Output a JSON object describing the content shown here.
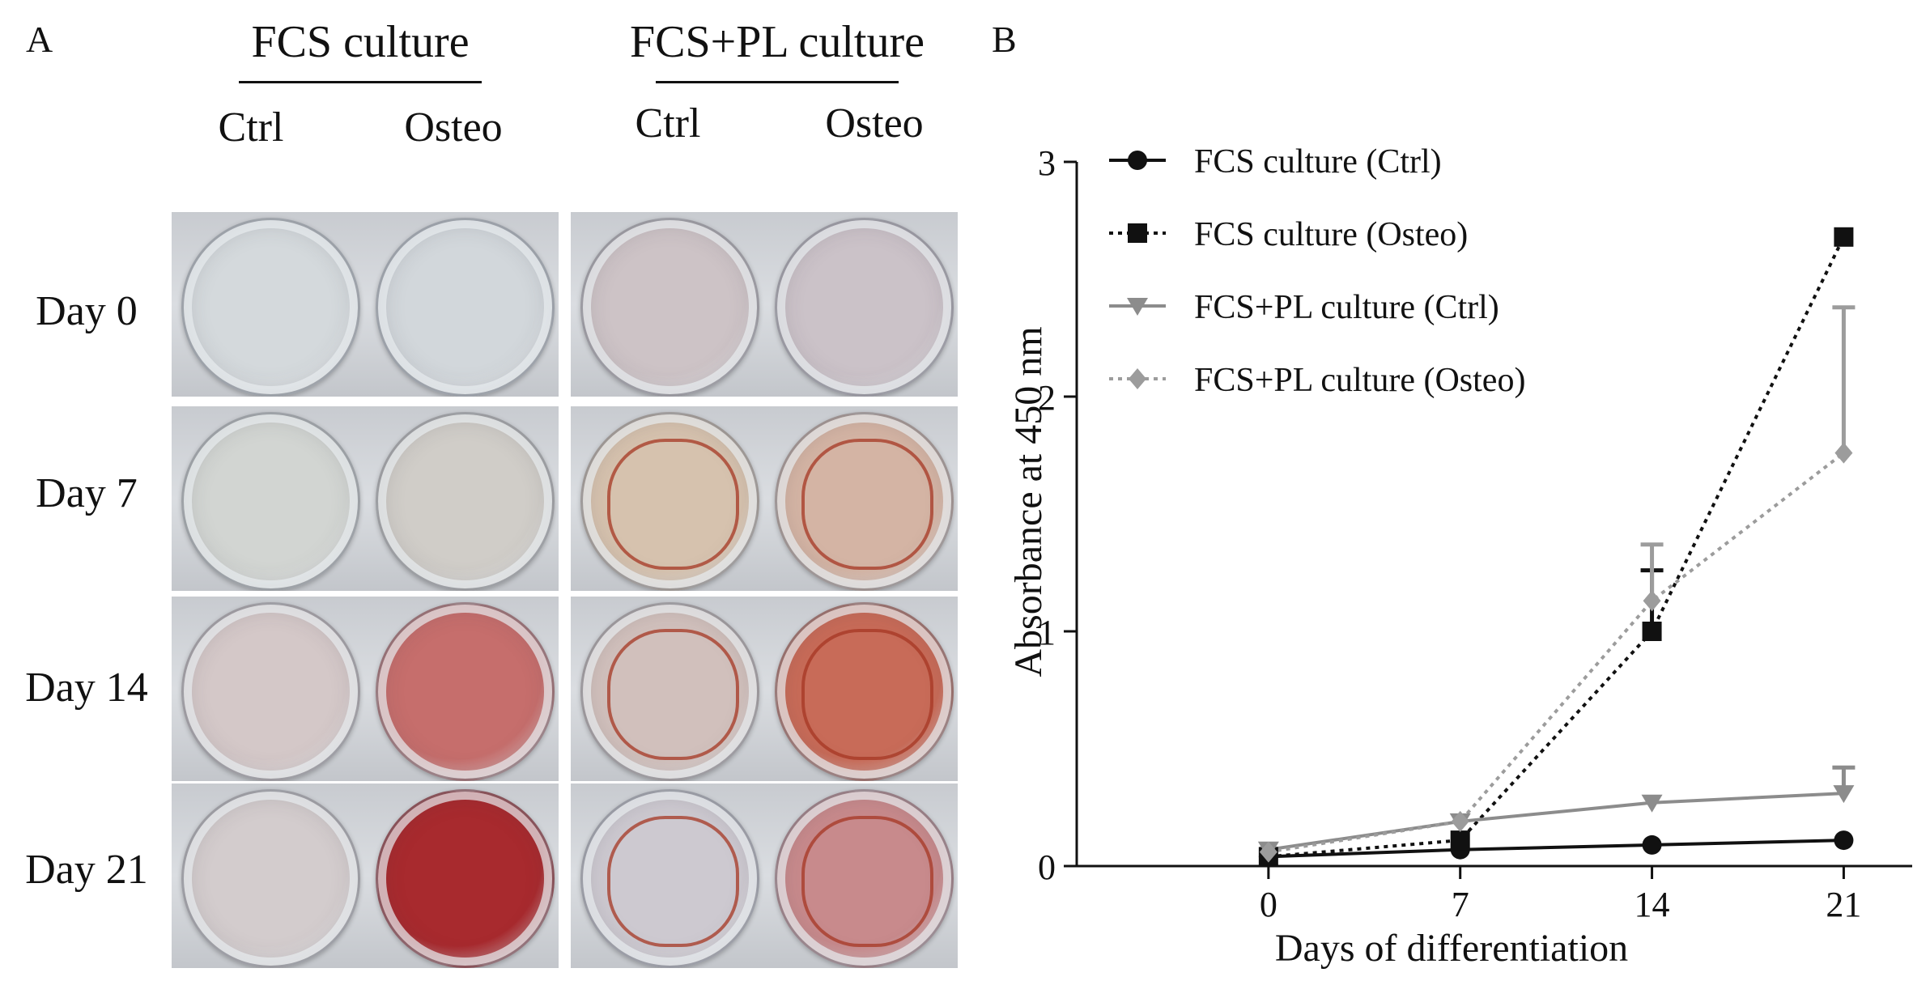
{
  "panel_a": {
    "letter": "A",
    "groups": [
      {
        "title": "FCS culture",
        "columns": [
          "Ctrl",
          "Osteo"
        ]
      },
      {
        "title": "FCS+PL culture",
        "columns": [
          "Ctrl",
          "Osteo"
        ]
      }
    ],
    "rows": [
      "Day 0",
      "Day 7",
      "Day 14",
      "Day 21"
    ],
    "well_colors": [
      [
        "#d4d9dc",
        "#d2d7db",
        "#cdc3c6",
        "#cbc2c8"
      ],
      [
        "#d2d5d2",
        "#d0cdc8",
        "#d6c2ae",
        "#d4b4a4"
      ],
      [
        "#d4c8c8",
        "#c66e6c",
        "#d1c0bc",
        "#c86b58"
      ],
      [
        "#d3cccd",
        "#a82a2e",
        "#cdc9d0",
        "#c88a8c"
      ]
    ],
    "inner_ring": [
      [
        false,
        false,
        false,
        false
      ],
      [
        false,
        false,
        true,
        true
      ],
      [
        false,
        false,
        true,
        true
      ],
      [
        false,
        false,
        true,
        true
      ]
    ]
  },
  "panel_b": {
    "letter": "B"
  },
  "chart_data": {
    "type": "line",
    "title": "",
    "xlabel": "Days of differentiation",
    "ylabel": "Absorbance at 450 nm",
    "x": [
      0,
      7,
      14,
      21
    ],
    "x_ticks": [
      "0",
      "7",
      "14",
      "21"
    ],
    "y_ticks": [
      "0",
      "1",
      "2",
      "3"
    ],
    "ylim": [
      0,
      3
    ],
    "legend_position": "top-left",
    "series": [
      {
        "name": "FCS culture (Ctrl)",
        "values": [
          0.04,
          0.07,
          0.09,
          0.11
        ],
        "errors": [
          0,
          0,
          0,
          0
        ],
        "color": "#111111",
        "line": "solid",
        "marker": "circle"
      },
      {
        "name": "FCS culture (Osteo)",
        "values": [
          0.04,
          0.11,
          1.0,
          2.68
        ],
        "errors": [
          0,
          0,
          0.26,
          0
        ],
        "color": "#111111",
        "line": "dotted",
        "marker": "square"
      },
      {
        "name": "FCS+PL culture (Ctrl)",
        "values": [
          0.07,
          0.19,
          0.27,
          0.31
        ],
        "errors": [
          0,
          0,
          0,
          0.11
        ],
        "color": "#8c8c8c",
        "line": "solid",
        "marker": "triangle-down"
      },
      {
        "name": "FCS+PL culture (Osteo)",
        "values": [
          0.06,
          0.19,
          1.13,
          1.76
        ],
        "errors": [
          0,
          0,
          0.24,
          0.62
        ],
        "color": "#9c9c9c",
        "line": "dotted",
        "marker": "diamond"
      }
    ]
  }
}
